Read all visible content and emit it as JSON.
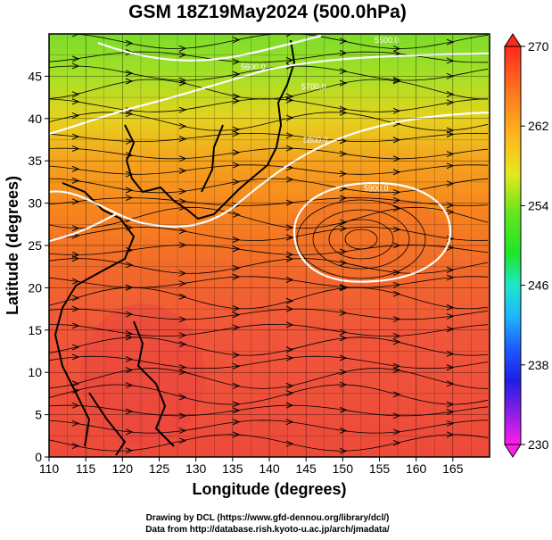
{
  "title": "GSM 18Z19May2024 (500.0hPa)",
  "chart_data": {
    "type": "heatmap",
    "xlabel": "Longitude (degrees)",
    "ylabel": "Latitude  (degrees)",
    "xlim": [
      110,
      170
    ],
    "ylim": [
      0,
      50
    ],
    "x_ticks": [
      "110",
      "115",
      "120",
      "125",
      "130",
      "135",
      "140",
      "145",
      "150",
      "155",
      "160",
      "165"
    ],
    "y_ticks": [
      "0",
      "5",
      "10",
      "15",
      "20",
      "25",
      "30",
      "35",
      "40",
      "45"
    ],
    "colorbar": {
      "range": [
        230,
        270
      ],
      "ticks": [
        "270",
        "262",
        "254",
        "246",
        "238",
        "230"
      ]
    },
    "contours": [
      {
        "label": "5900.0"
      },
      {
        "label": "5800.0"
      },
      {
        "label": "5700.0"
      },
      {
        "label": "5600.0"
      },
      {
        "label": "5500.0"
      }
    ]
  },
  "credits": {
    "line1": "Drawing by DCL (https://www.gfd-dennou.org/library/dcl/)",
    "line2": "Data from http://database.rish.kyoto-u.ac.jp/arch/jmadata/"
  }
}
